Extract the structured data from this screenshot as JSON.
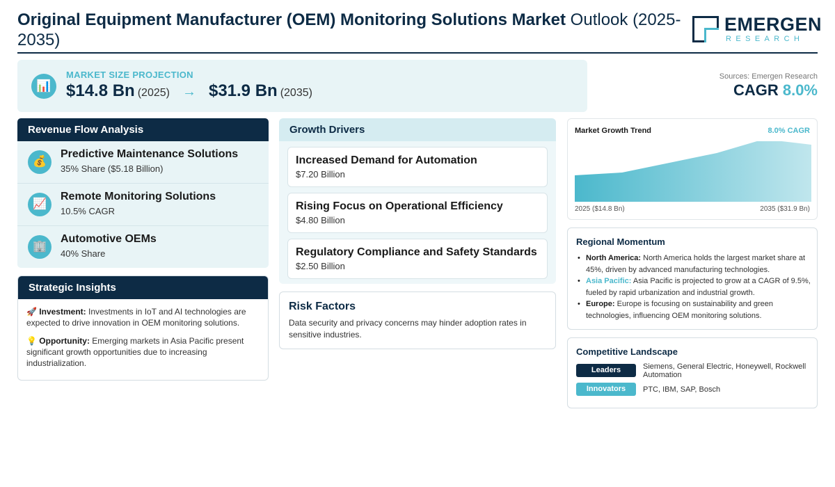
{
  "header": {
    "title_bold": "Original Equipment Manufacturer (OEM) Monitoring Solutions Market",
    "title_rest": " Outlook (2025-2035)",
    "logo_name": "EMERGEN",
    "logo_sub": "RESEARCH"
  },
  "projection": {
    "icon": "bar-chart-icon",
    "label": "MARKET SIZE PROJECTION",
    "start_value": "$14.8 Bn",
    "start_year": "(2025)",
    "arrow": "→",
    "end_value": "$31.9 Bn",
    "end_year": "(2035)"
  },
  "summary": {
    "sources": "Sources: Emergen Research",
    "cagr_label": "CAGR ",
    "cagr_value": "8.0%"
  },
  "revenue_flow": {
    "heading": "Revenue Flow Analysis",
    "items": [
      {
        "icon": "money-bag-icon",
        "glyph": "💰",
        "title": "Predictive Maintenance Solutions",
        "sub": "35% Share ($5.18 Billion)"
      },
      {
        "icon": "trend-up-icon",
        "glyph": "📈",
        "title": "Remote Monitoring Solutions",
        "sub": "10.5% CAGR"
      },
      {
        "icon": "building-icon",
        "glyph": "🏢",
        "title": "Automotive OEMs",
        "sub": "40% Share"
      }
    ]
  },
  "insights": {
    "heading": "Strategic Insights",
    "items": [
      {
        "emoji": "🚀",
        "label": "Investment:",
        "text": " Investments in IoT and AI technologies are expected to drive innovation in OEM monitoring solutions."
      },
      {
        "emoji": "💡",
        "label": "Opportunity:",
        "text": " Emerging markets in Asia Pacific present significant growth opportunities due to increasing industrialization."
      }
    ]
  },
  "drivers": {
    "heading": "Growth Drivers",
    "items": [
      {
        "title": "Increased Demand for Automation",
        "value": "$7.20 Billion"
      },
      {
        "title": "Rising Focus on Operational Efficiency",
        "value": "$4.80 Billion"
      },
      {
        "title": "Regulatory Compliance and Safety Standards",
        "value": "$2.50 Billion"
      }
    ]
  },
  "risk": {
    "title": "Risk Factors",
    "text": "Data security and privacy concerns may hinder adoption rates in sensitive industries."
  },
  "trend": {
    "title": "Market Growth Trend",
    "cagr": "8.0% CAGR",
    "start_label": "2025 ($14.8 Bn)",
    "end_label": "2035 ($31.9 Bn)"
  },
  "chart_data": {
    "type": "area",
    "title": "Market Growth Trend",
    "x": [
      2025,
      2035
    ],
    "series": [
      {
        "values": [
          14.8,
          31.9
        ]
      }
    ],
    "ylim": [
      0,
      31.9
    ],
    "grid": false,
    "fill_color": "#4bb8cc"
  },
  "regional": {
    "title": "Regional Momentum",
    "items": [
      {
        "label": "North America:",
        "highlight": false,
        "text": " North America holds the largest market share at 45%, driven by advanced manufacturing technologies."
      },
      {
        "label": "Asia Pacific:",
        "highlight": true,
        "text": " Asia Pacific is projected to grow at a CAGR of 9.5%, fueled by rapid urbanization and industrial growth."
      },
      {
        "label": "Europe:",
        "highlight": false,
        "text": " Europe is focusing on sustainability and green technologies, influencing OEM monitoring solutions."
      }
    ]
  },
  "competitive": {
    "title": "Competitive Landscape",
    "rows": [
      {
        "badge": "Leaders",
        "text": "Siemens, General Electric, Honeywell, Rockwell Automation"
      },
      {
        "badge": "Innovators",
        "text": "PTC, IBM, SAP, Bosch"
      }
    ]
  },
  "colors": {
    "navy": "#0d2b45",
    "accent": "#4bb8cc",
    "panel_bg": "#e8f4f6"
  }
}
